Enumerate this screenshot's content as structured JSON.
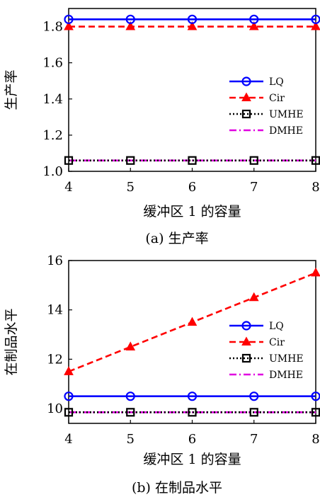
{
  "figure": {
    "captions": [
      "(a)  生产率",
      "(b)  在制品水平"
    ]
  },
  "chart_data": [
    {
      "type": "line",
      "title": "",
      "caption": "(a)  生产率",
      "xlabel": "缓冲区 1 的容量",
      "ylabel": "生产率",
      "x": [
        4,
        5,
        6,
        7,
        8
      ],
      "xlim": [
        4,
        8
      ],
      "ylim": [
        1.0,
        1.9
      ],
      "xticks": [
        "4",
        "5",
        "6",
        "7",
        "8"
      ],
      "yticks": [
        "1.0",
        "1.2",
        "1.4",
        "1.6",
        "1.8"
      ],
      "grid": false,
      "legend_position": "center-right",
      "series": [
        {
          "name": "LQ",
          "values": [
            1.84,
            1.84,
            1.84,
            1.84,
            1.84
          ],
          "color": "#0000ff",
          "dash": "solid",
          "marker": "circle"
        },
        {
          "name": "Cir",
          "values": [
            1.8,
            1.8,
            1.8,
            1.8,
            1.8
          ],
          "color": "#ff0000",
          "dash": "dashed",
          "marker": "triangle"
        },
        {
          "name": "UMHE",
          "values": [
            1.06,
            1.06,
            1.06,
            1.06,
            1.06
          ],
          "color": "#000000",
          "dash": "dotted",
          "marker": "square"
        },
        {
          "name": "DMHE",
          "values": [
            1.06,
            1.06,
            1.06,
            1.06,
            1.06
          ],
          "color": "#e000e0",
          "dash": "dashdot",
          "marker": "none"
        }
      ]
    },
    {
      "type": "line",
      "title": "",
      "caption": "(b)  在制品水平",
      "xlabel": "缓冲区 1 的容量",
      "ylabel": "在制品水平",
      "x": [
        4,
        5,
        6,
        7,
        8
      ],
      "xlim": [
        4,
        8
      ],
      "ylim": [
        9.4,
        16.0
      ],
      "xticks": [
        "4",
        "5",
        "6",
        "7",
        "8"
      ],
      "yticks": [
        "10",
        "12",
        "14",
        "16"
      ],
      "grid": false,
      "legend_position": "center-right",
      "series": [
        {
          "name": "LQ",
          "values": [
            10.5,
            10.5,
            10.5,
            10.5,
            10.5
          ],
          "color": "#0000ff",
          "dash": "solid",
          "marker": "circle"
        },
        {
          "name": "Cir",
          "values": [
            11.5,
            12.5,
            13.5,
            14.5,
            15.5
          ],
          "color": "#ff0000",
          "dash": "dashed",
          "marker": "triangle"
        },
        {
          "name": "UMHE",
          "values": [
            9.85,
            9.85,
            9.85,
            9.85,
            9.85
          ],
          "color": "#000000",
          "dash": "dotted",
          "marker": "square"
        },
        {
          "name": "DMHE",
          "values": [
            9.85,
            9.85,
            9.85,
            9.85,
            9.85
          ],
          "color": "#e000e0",
          "dash": "dashdot",
          "marker": "none"
        }
      ]
    }
  ]
}
